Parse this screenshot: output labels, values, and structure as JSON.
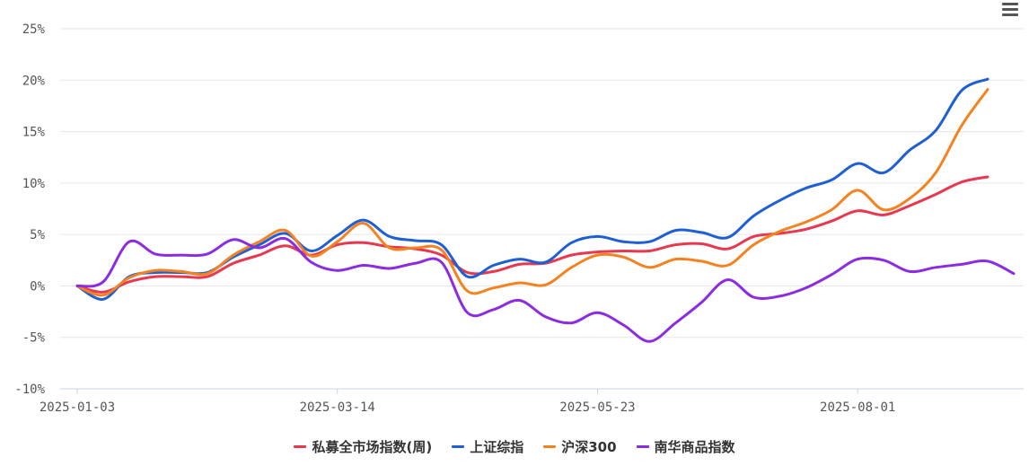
{
  "toolbar": {
    "menu_icon": "hamburger-menu-icon"
  },
  "chart_data": {
    "type": "line",
    "title": "",
    "xlabel": "",
    "ylabel": "",
    "ylim": [
      -10,
      25
    ],
    "y_ticks": [
      25,
      20,
      15,
      10,
      5,
      0,
      -5,
      -10
    ],
    "y_tick_labels": [
      "25%",
      "20%",
      "15%",
      "10%",
      "5%",
      "0%",
      "-5%",
      "-10%"
    ],
    "xlim": [
      "2025-01-03",
      "2025-09-12"
    ],
    "x_tick_labels": [
      "2025-01-03",
      "2025-03-14",
      "2025-05-23",
      "2025-08-01"
    ],
    "grid": true,
    "legend_position": "bottom-center",
    "series": [
      {
        "name": "私募全市场指数(周)",
        "color": "#e8384f",
        "points": [
          [
            "2025-01-03",
            0.0
          ],
          [
            "2025-01-10",
            -0.6
          ],
          [
            "2025-01-17",
            0.4
          ],
          [
            "2025-01-24",
            0.9
          ],
          [
            "2025-01-31",
            0.9
          ],
          [
            "2025-02-07",
            0.9
          ],
          [
            "2025-02-14",
            2.2
          ],
          [
            "2025-02-21",
            3.0
          ],
          [
            "2025-02-28",
            3.9
          ],
          [
            "2025-03-07",
            3.0
          ],
          [
            "2025-03-14",
            4.0
          ],
          [
            "2025-03-21",
            4.2
          ],
          [
            "2025-03-28",
            3.8
          ],
          [
            "2025-04-04",
            3.6
          ],
          [
            "2025-04-11",
            3.0
          ],
          [
            "2025-04-18",
            1.3
          ],
          [
            "2025-04-25",
            1.4
          ],
          [
            "2025-05-02",
            2.1
          ],
          [
            "2025-05-09",
            2.2
          ],
          [
            "2025-05-16",
            3.0
          ],
          [
            "2025-05-23",
            3.3
          ],
          [
            "2025-05-30",
            3.4
          ],
          [
            "2025-06-06",
            3.4
          ],
          [
            "2025-06-13",
            4.0
          ],
          [
            "2025-06-20",
            4.1
          ],
          [
            "2025-06-27",
            3.6
          ],
          [
            "2025-07-04",
            4.8
          ],
          [
            "2025-07-11",
            5.1
          ],
          [
            "2025-07-18",
            5.5
          ],
          [
            "2025-07-25",
            6.3
          ],
          [
            "2025-08-01",
            7.3
          ],
          [
            "2025-08-08",
            6.9
          ],
          [
            "2025-08-15",
            7.8
          ],
          [
            "2025-08-22",
            8.9
          ],
          [
            "2025-08-29",
            10.1
          ],
          [
            "2025-09-05",
            10.6
          ]
        ]
      },
      {
        "name": "上证综指",
        "color": "#1f5fd6",
        "points": [
          [
            "2025-01-03",
            0.0
          ],
          [
            "2025-01-10",
            -1.3
          ],
          [
            "2025-01-17",
            0.9
          ],
          [
            "2025-01-24",
            1.3
          ],
          [
            "2025-01-31",
            1.3
          ],
          [
            "2025-02-07",
            1.3
          ],
          [
            "2025-02-14",
            2.8
          ],
          [
            "2025-02-21",
            4.0
          ],
          [
            "2025-02-28",
            5.1
          ],
          [
            "2025-03-07",
            3.4
          ],
          [
            "2025-03-14",
            4.9
          ],
          [
            "2025-03-21",
            6.4
          ],
          [
            "2025-03-28",
            4.8
          ],
          [
            "2025-04-04",
            4.4
          ],
          [
            "2025-04-11",
            4.0
          ],
          [
            "2025-04-18",
            0.9
          ],
          [
            "2025-04-25",
            2.0
          ],
          [
            "2025-05-02",
            2.6
          ],
          [
            "2025-05-09",
            2.3
          ],
          [
            "2025-05-16",
            4.2
          ],
          [
            "2025-05-23",
            4.8
          ],
          [
            "2025-05-30",
            4.3
          ],
          [
            "2025-06-06",
            4.3
          ],
          [
            "2025-06-13",
            5.4
          ],
          [
            "2025-06-20",
            5.2
          ],
          [
            "2025-06-27",
            4.7
          ],
          [
            "2025-07-04",
            6.8
          ],
          [
            "2025-07-11",
            8.3
          ],
          [
            "2025-07-18",
            9.5
          ],
          [
            "2025-07-25",
            10.3
          ],
          [
            "2025-08-01",
            11.9
          ],
          [
            "2025-08-08",
            11.0
          ],
          [
            "2025-08-15",
            13.2
          ],
          [
            "2025-08-22",
            15.1
          ],
          [
            "2025-08-29",
            19.0
          ],
          [
            "2025-09-05",
            20.1
          ]
        ]
      },
      {
        "name": "沪深300",
        "color": "#f58220",
        "points": [
          [
            "2025-01-03",
            0.0
          ],
          [
            "2025-01-10",
            -0.9
          ],
          [
            "2025-01-17",
            0.8
          ],
          [
            "2025-01-24",
            1.5
          ],
          [
            "2025-01-31",
            1.4
          ],
          [
            "2025-02-07",
            1.2
          ],
          [
            "2025-02-14",
            3.0
          ],
          [
            "2025-02-21",
            4.3
          ],
          [
            "2025-02-28",
            5.4
          ],
          [
            "2025-03-07",
            2.9
          ],
          [
            "2025-03-14",
            4.3
          ],
          [
            "2025-03-21",
            6.1
          ],
          [
            "2025-03-28",
            3.7
          ],
          [
            "2025-04-04",
            3.7
          ],
          [
            "2025-04-11",
            3.5
          ],
          [
            "2025-04-18",
            -0.5
          ],
          [
            "2025-04-25",
            -0.2
          ],
          [
            "2025-05-02",
            0.3
          ],
          [
            "2025-05-09",
            0.1
          ],
          [
            "2025-05-16",
            1.8
          ],
          [
            "2025-05-23",
            3.0
          ],
          [
            "2025-05-30",
            2.8
          ],
          [
            "2025-06-06",
            1.8
          ],
          [
            "2025-06-13",
            2.6
          ],
          [
            "2025-06-20",
            2.4
          ],
          [
            "2025-06-27",
            2.0
          ],
          [
            "2025-07-04",
            4.0
          ],
          [
            "2025-07-11",
            5.3
          ],
          [
            "2025-07-18",
            6.2
          ],
          [
            "2025-07-25",
            7.4
          ],
          [
            "2025-08-01",
            9.3
          ],
          [
            "2025-08-08",
            7.4
          ],
          [
            "2025-08-15",
            8.5
          ],
          [
            "2025-08-22",
            11.0
          ],
          [
            "2025-08-29",
            15.6
          ],
          [
            "2025-09-05",
            19.1
          ]
        ]
      },
      {
        "name": "南华商品指数",
        "color": "#8b2be2",
        "points": [
          [
            "2025-01-03",
            0.0
          ],
          [
            "2025-01-10",
            0.4
          ],
          [
            "2025-01-17",
            4.3
          ],
          [
            "2025-01-24",
            3.1
          ],
          [
            "2025-01-31",
            3.0
          ],
          [
            "2025-02-07",
            3.1
          ],
          [
            "2025-02-14",
            4.5
          ],
          [
            "2025-02-21",
            3.7
          ],
          [
            "2025-02-28",
            4.6
          ],
          [
            "2025-03-07",
            2.3
          ],
          [
            "2025-03-14",
            1.5
          ],
          [
            "2025-03-21",
            2.0
          ],
          [
            "2025-03-28",
            1.7
          ],
          [
            "2025-04-04",
            2.2
          ],
          [
            "2025-04-11",
            2.3
          ],
          [
            "2025-04-18",
            -2.6
          ],
          [
            "2025-04-25",
            -2.3
          ],
          [
            "2025-05-02",
            -1.4
          ],
          [
            "2025-05-09",
            -3.0
          ],
          [
            "2025-05-16",
            -3.6
          ],
          [
            "2025-05-23",
            -2.6
          ],
          [
            "2025-05-30",
            -3.8
          ],
          [
            "2025-06-06",
            -5.4
          ],
          [
            "2025-06-13",
            -3.6
          ],
          [
            "2025-06-20",
            -1.6
          ],
          [
            "2025-06-27",
            0.6
          ],
          [
            "2025-07-04",
            -1.1
          ],
          [
            "2025-07-11",
            -1.0
          ],
          [
            "2025-07-18",
            -0.2
          ],
          [
            "2025-07-25",
            1.1
          ],
          [
            "2025-08-01",
            2.6
          ],
          [
            "2025-08-08",
            2.5
          ],
          [
            "2025-08-15",
            1.4
          ],
          [
            "2025-08-22",
            1.8
          ],
          [
            "2025-08-29",
            2.1
          ],
          [
            "2025-09-05",
            2.4
          ],
          [
            "2025-09-12",
            1.2
          ]
        ]
      }
    ]
  }
}
